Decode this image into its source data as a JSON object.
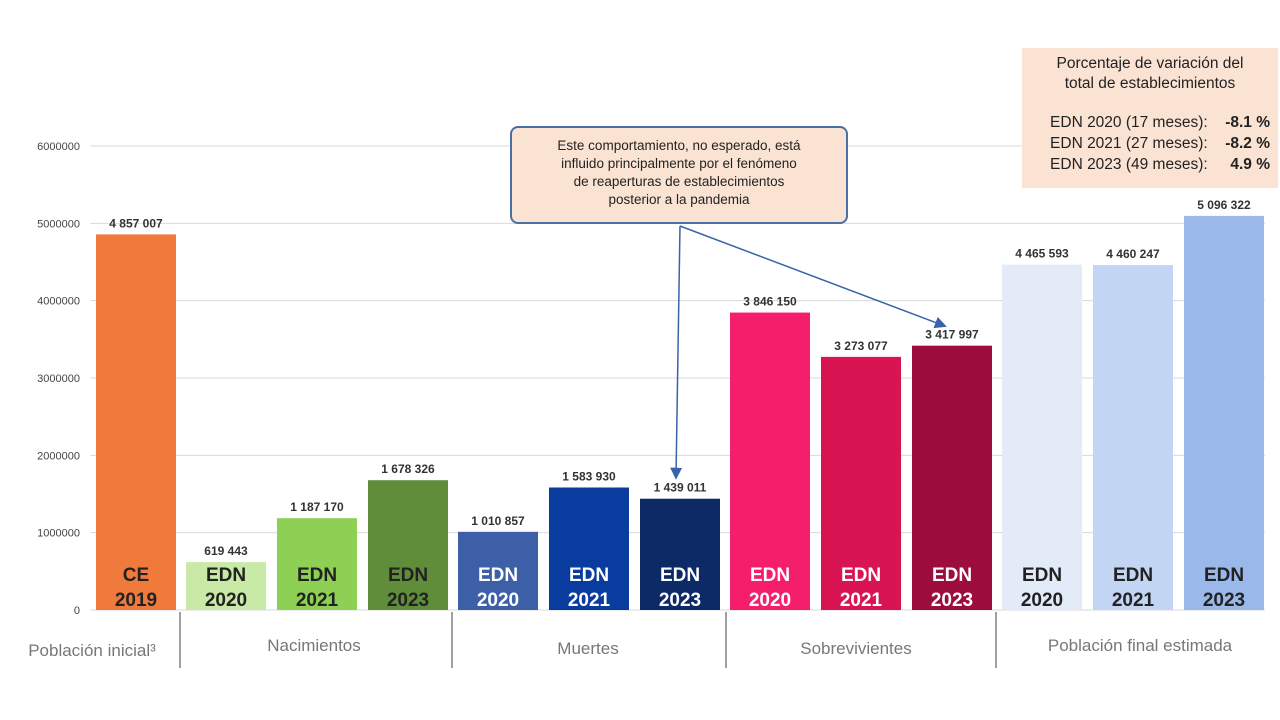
{
  "chart_data": {
    "type": "bar",
    "ylim": [
      0,
      6000000
    ],
    "yticks": [
      "0",
      "1000000",
      "2000000",
      "3000000",
      "4000000",
      "5000000",
      "6000000"
    ],
    "grid": true,
    "bars": [
      {
        "label_line1": "CE",
        "label_line2": "2019",
        "value": 4857007,
        "value_label": "4 857 007",
        "color": "#f07a3c",
        "label_color": "#222222",
        "group": 0
      },
      {
        "label_line1": "EDN",
        "label_line2": "2020",
        "value": 619443,
        "value_label": "619 443",
        "color": "#c9eaa6",
        "label_color": "#222222",
        "group": 1
      },
      {
        "label_line1": "EDN",
        "label_line2": "2021",
        "value": 1187170,
        "value_label": "1 187 170",
        "color": "#8ed053",
        "label_color": "#222222",
        "group": 1
      },
      {
        "label_line1": "EDN",
        "label_line2": "2023",
        "value": 1678326,
        "value_label": "1 678 326",
        "color": "#5f8d3a",
        "label_color": "#222222",
        "group": 1
      },
      {
        "label_line1": "EDN",
        "label_line2": "2020",
        "value": 1010857,
        "value_label": "1 010 857",
        "color": "#3d5fa8",
        "label_color": "#ffffff",
        "group": 2
      },
      {
        "label_line1": "EDN",
        "label_line2": "2021",
        "value": 1583930,
        "value_label": "1 583 930",
        "color": "#0a3b9e",
        "label_color": "#ffffff",
        "group": 2
      },
      {
        "label_line1": "EDN",
        "label_line2": "2023",
        "value": 1439011,
        "value_label": "1 439 011",
        "color": "#0c2a66",
        "label_color": "#ffffff",
        "group": 2
      },
      {
        "label_line1": "EDN",
        "label_line2": "2020",
        "value": 3846150,
        "value_label": "3 846 150",
        "color": "#f41e6b",
        "label_color": "#ffffff",
        "group": 3
      },
      {
        "label_line1": "EDN",
        "label_line2": "2021",
        "value": 3273077,
        "value_label": "3 273 077",
        "color": "#d81452",
        "label_color": "#ffffff",
        "group": 3
      },
      {
        "label_line1": "EDN",
        "label_line2": "2023",
        "value": 3417997,
        "value_label": "3 417 997",
        "color": "#9c0c3c",
        "label_color": "#ffffff",
        "group": 3
      },
      {
        "label_line1": "EDN",
        "label_line2": "2020",
        "value": 4465593,
        "value_label": "4 465 593",
        "color": "#e4ebf8",
        "label_color": "#222222",
        "group": 4
      },
      {
        "label_line1": "EDN",
        "label_line2": "2021",
        "value": 4460247,
        "value_label": "4 460 247",
        "color": "#c2d5f3",
        "label_color": "#222222",
        "group": 4
      },
      {
        "label_line1": "EDN",
        "label_line2": "2023",
        "value": 5096322,
        "value_label": "5 096 322",
        "color": "#9ab8e9",
        "label_color": "#222222",
        "group": 4
      }
    ],
    "groups": [
      "Población inicial³",
      "Nacimientos",
      "Muertes",
      "Sobrevivientes",
      "Población final estimada"
    ]
  },
  "callout": {
    "line1": "Este comportamiento, no esperado, está",
    "line2": "influido principalmente por el fenómeno",
    "line3": "de reaperturas de establecimientos",
    "line4": "posterior a la pandemia"
  },
  "variation_box": {
    "title_line1": "Porcentaje de variación del",
    "title_line2": "total de establecimientos",
    "rows": [
      {
        "label": "EDN 2020 (17 meses):",
        "value": "-8.1 %"
      },
      {
        "label": "EDN 2021 (27 meses):",
        "value": "-8.2 %"
      },
      {
        "label": "EDN 2023 (49 meses):",
        "value": "4.9 %"
      }
    ]
  },
  "colors": {
    "callout_border": "#4a6fa5",
    "callout_fill": "#fbe3d4",
    "arrow": "#3a64a8",
    "gridline": "#d9d9d9"
  }
}
